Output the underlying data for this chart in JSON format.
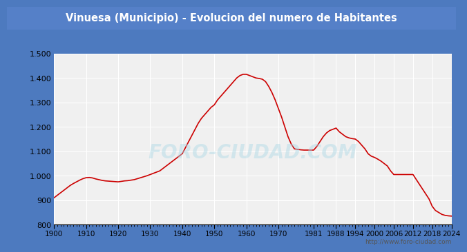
{
  "title": "Vinuesa (Municipio) - Evolucion del numero de Habitantes",
  "title_bg_color": "#5580c8",
  "title_text_color": "white",
  "plot_bg_color": "#f0f0f0",
  "figure_bg_color": "#4d7abf",
  "line_color": "#cc0000",
  "grid_color": "white",
  "footer_text": "http://www.foro-ciudad.com",
  "watermark": "FORO-CIUDAD.COM",
  "ylim": [
    800,
    1500
  ],
  "yticks": [
    800,
    900,
    1000,
    1100,
    1200,
    1300,
    1400,
    1500
  ],
  "xticks": [
    1900,
    1910,
    1920,
    1930,
    1940,
    1950,
    1960,
    1970,
    1981,
    1988,
    1994,
    2000,
    2006,
    2012,
    2018,
    2024
  ],
  "xlim": [
    1900,
    2024
  ],
  "extra_points": [
    [
      1900,
      910
    ],
    [
      1901,
      920
    ],
    [
      1902,
      930
    ],
    [
      1903,
      940
    ],
    [
      1904,
      950
    ],
    [
      1905,
      960
    ],
    [
      1906,
      968
    ],
    [
      1907,
      975
    ],
    [
      1908,
      982
    ],
    [
      1909,
      988
    ],
    [
      1910,
      992
    ],
    [
      1911,
      993
    ],
    [
      1912,
      991
    ],
    [
      1913,
      987
    ],
    [
      1914,
      984
    ],
    [
      1915,
      981
    ],
    [
      1916,
      979
    ],
    [
      1917,
      978
    ],
    [
      1918,
      977
    ],
    [
      1919,
      976
    ],
    [
      1920,
      975
    ],
    [
      1921,
      977
    ],
    [
      1922,
      979
    ],
    [
      1923,
      980
    ],
    [
      1924,
      982
    ],
    [
      1925,
      984
    ],
    [
      1926,
      988
    ],
    [
      1927,
      992
    ],
    [
      1928,
      996
    ],
    [
      1929,
      1000
    ],
    [
      1930,
      1005
    ],
    [
      1931,
      1010
    ],
    [
      1932,
      1015
    ],
    [
      1933,
      1020
    ],
    [
      1934,
      1030
    ],
    [
      1935,
      1040
    ],
    [
      1936,
      1050
    ],
    [
      1937,
      1060
    ],
    [
      1938,
      1070
    ],
    [
      1939,
      1080
    ],
    [
      1940,
      1090
    ],
    [
      1941,
      1115
    ],
    [
      1942,
      1140
    ],
    [
      1943,
      1165
    ],
    [
      1944,
      1190
    ],
    [
      1945,
      1215
    ],
    [
      1946,
      1235
    ],
    [
      1947,
      1250
    ],
    [
      1948,
      1265
    ],
    [
      1949,
      1280
    ],
    [
      1950,
      1290
    ],
    [
      1951,
      1310
    ],
    [
      1952,
      1325
    ],
    [
      1953,
      1340
    ],
    [
      1954,
      1355
    ],
    [
      1955,
      1370
    ],
    [
      1956,
      1385
    ],
    [
      1957,
      1400
    ],
    [
      1958,
      1410
    ],
    [
      1959,
      1415
    ],
    [
      1960,
      1415
    ],
    [
      1961,
      1410
    ],
    [
      1962,
      1405
    ],
    [
      1963,
      1400
    ],
    [
      1964,
      1398
    ],
    [
      1965,
      1395
    ],
    [
      1966,
      1385
    ],
    [
      1967,
      1365
    ],
    [
      1968,
      1340
    ],
    [
      1969,
      1310
    ],
    [
      1970,
      1275
    ],
    [
      1971,
      1240
    ],
    [
      1972,
      1200
    ],
    [
      1973,
      1160
    ],
    [
      1974,
      1130
    ],
    [
      1975,
      1110
    ],
    [
      1976,
      1108
    ],
    [
      1977,
      1106
    ],
    [
      1978,
      1105
    ],
    [
      1979,
      1105
    ],
    [
      1980,
      1105
    ],
    [
      1981,
      1105
    ],
    [
      1982,
      1120
    ],
    [
      1983,
      1140
    ],
    [
      1984,
      1160
    ],
    [
      1985,
      1175
    ],
    [
      1986,
      1185
    ],
    [
      1987,
      1190
    ],
    [
      1988,
      1195
    ],
    [
      1989,
      1180
    ],
    [
      1990,
      1170
    ],
    [
      1991,
      1160
    ],
    [
      1992,
      1155
    ],
    [
      1993,
      1152
    ],
    [
      1994,
      1150
    ],
    [
      1995,
      1140
    ],
    [
      1996,
      1125
    ],
    [
      1997,
      1110
    ],
    [
      1998,
      1090
    ],
    [
      1999,
      1080
    ],
    [
      2000,
      1075
    ],
    [
      2001,
      1068
    ],
    [
      2002,
      1060
    ],
    [
      2003,
      1050
    ],
    [
      2004,
      1040
    ],
    [
      2005,
      1020
    ],
    [
      2006,
      1005
    ],
    [
      2007,
      1005
    ],
    [
      2008,
      1005
    ],
    [
      2009,
      1005
    ],
    [
      2010,
      1005
    ],
    [
      2011,
      1005
    ],
    [
      2012,
      1005
    ],
    [
      2013,
      985
    ],
    [
      2014,
      965
    ],
    [
      2015,
      945
    ],
    [
      2016,
      925
    ],
    [
      2017,
      905
    ],
    [
      2018,
      875
    ],
    [
      2019,
      858
    ],
    [
      2020,
      850
    ],
    [
      2021,
      842
    ],
    [
      2022,
      838
    ],
    [
      2023,
      836
    ],
    [
      2024,
      835
    ]
  ]
}
